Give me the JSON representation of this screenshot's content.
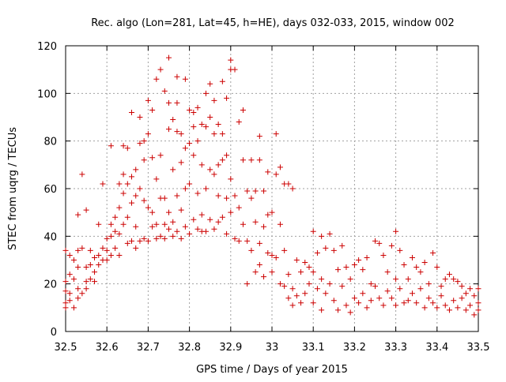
{
  "chart_data": {
    "type": "scatter",
    "title": "Rec. algo (Lon=281, Lat=45, h=HE), days 032-033, 2015, window 002",
    "xlabel": "GPS time / Days of year 2015",
    "ylabel": "STEC from uqrg / TECUs",
    "xlim": [
      32.5,
      33.5
    ],
    "ylim": [
      0,
      120
    ],
    "x_ticks": [
      "32.5",
      "32.6",
      "32.7",
      "32.8",
      "32.9",
      "33",
      "33.1",
      "33.2",
      "33.3",
      "33.4",
      "33.5"
    ],
    "y_ticks": [
      "0",
      "20",
      "40",
      "60",
      "80",
      "100",
      "120"
    ],
    "grid": true,
    "marker": "+",
    "color": "#cc0000",
    "series": [
      {
        "points": [
          [
            32.5,
            34
          ],
          [
            32.5,
            21
          ],
          [
            32.5,
            17
          ],
          [
            32.5,
            12
          ],
          [
            32.5,
            10
          ],
          [
            32.51,
            32
          ],
          [
            32.51,
            24
          ],
          [
            32.51,
            16
          ],
          [
            32.51,
            13
          ],
          [
            32.52,
            30
          ],
          [
            32.52,
            22
          ],
          [
            32.52,
            10
          ],
          [
            32.53,
            49
          ],
          [
            32.53,
            34
          ],
          [
            32.53,
            27
          ],
          [
            32.53,
            18
          ],
          [
            32.53,
            14
          ],
          [
            32.54,
            66
          ],
          [
            32.54,
            35
          ],
          [
            32.54,
            16
          ],
          [
            32.55,
            51
          ],
          [
            32.55,
            27
          ],
          [
            32.55,
            21
          ],
          [
            32.55,
            18
          ],
          [
            32.56,
            34
          ],
          [
            32.56,
            28
          ],
          [
            32.56,
            22
          ],
          [
            32.57,
            31
          ],
          [
            32.57,
            25
          ],
          [
            32.57,
            21
          ],
          [
            32.58,
            45
          ],
          [
            32.58,
            32
          ],
          [
            32.58,
            28
          ],
          [
            32.59,
            62
          ],
          [
            32.59,
            35
          ],
          [
            32.59,
            30
          ],
          [
            32.6,
            39
          ],
          [
            32.6,
            34
          ],
          [
            32.6,
            30
          ],
          [
            32.61,
            78
          ],
          [
            32.61,
            45
          ],
          [
            32.61,
            40
          ],
          [
            32.61,
            32
          ],
          [
            32.62,
            48
          ],
          [
            32.62,
            42
          ],
          [
            32.62,
            35
          ],
          [
            32.63,
            62
          ],
          [
            32.63,
            52
          ],
          [
            32.63,
            41
          ],
          [
            32.63,
            32
          ],
          [
            32.64,
            78
          ],
          [
            32.64,
            66
          ],
          [
            32.64,
            58
          ],
          [
            32.64,
            45
          ],
          [
            32.65,
            77
          ],
          [
            32.65,
            62
          ],
          [
            32.65,
            48
          ],
          [
            32.65,
            37
          ],
          [
            32.66,
            92
          ],
          [
            32.66,
            65
          ],
          [
            32.66,
            54
          ],
          [
            32.66,
            38
          ],
          [
            32.67,
            68
          ],
          [
            32.67,
            57
          ],
          [
            32.67,
            44
          ],
          [
            32.67,
            35
          ],
          [
            32.68,
            90
          ],
          [
            32.68,
            79
          ],
          [
            32.68,
            60
          ],
          [
            32.68,
            38
          ],
          [
            32.69,
            80
          ],
          [
            32.69,
            72
          ],
          [
            32.69,
            55
          ],
          [
            32.69,
            39
          ],
          [
            32.7,
            97
          ],
          [
            32.7,
            83
          ],
          [
            32.7,
            52
          ],
          [
            32.7,
            38
          ],
          [
            32.71,
            93
          ],
          [
            32.71,
            73
          ],
          [
            32.71,
            50
          ],
          [
            32.71,
            44
          ],
          [
            32.72,
            106
          ],
          [
            32.72,
            64
          ],
          [
            32.72,
            45
          ],
          [
            32.72,
            39
          ],
          [
            32.73,
            110
          ],
          [
            32.73,
            74
          ],
          [
            32.73,
            56
          ],
          [
            32.73,
            40
          ],
          [
            32.74,
            101
          ],
          [
            32.74,
            56
          ],
          [
            32.74,
            45
          ],
          [
            32.74,
            39
          ],
          [
            32.75,
            115
          ],
          [
            32.75,
            96
          ],
          [
            32.75,
            85
          ],
          [
            32.75,
            50
          ],
          [
            32.75,
            43
          ],
          [
            32.76,
            89
          ],
          [
            32.76,
            68
          ],
          [
            32.76,
            46
          ],
          [
            32.76,
            40
          ],
          [
            32.77,
            107
          ],
          [
            32.77,
            96
          ],
          [
            32.77,
            84
          ],
          [
            32.77,
            57
          ],
          [
            32.77,
            42
          ],
          [
            32.78,
            83
          ],
          [
            32.78,
            71
          ],
          [
            32.78,
            51
          ],
          [
            32.78,
            39
          ],
          [
            32.79,
            106
          ],
          [
            32.79,
            77
          ],
          [
            32.79,
            60
          ],
          [
            32.79,
            44
          ],
          [
            32.8,
            93
          ],
          [
            32.8,
            79
          ],
          [
            32.8,
            62
          ],
          [
            32.8,
            41
          ],
          [
            32.81,
            92
          ],
          [
            32.81,
            86
          ],
          [
            32.81,
            74
          ],
          [
            32.81,
            47
          ],
          [
            32.82,
            94
          ],
          [
            32.82,
            80
          ],
          [
            32.82,
            58
          ],
          [
            32.82,
            43
          ],
          [
            32.83,
            87
          ],
          [
            32.83,
            70
          ],
          [
            32.83,
            49
          ],
          [
            32.83,
            42
          ],
          [
            32.84,
            100
          ],
          [
            32.84,
            86
          ],
          [
            32.84,
            60
          ],
          [
            32.84,
            42
          ],
          [
            32.85,
            104
          ],
          [
            32.85,
            90
          ],
          [
            32.85,
            68
          ],
          [
            32.85,
            47
          ],
          [
            32.86,
            97
          ],
          [
            32.86,
            83
          ],
          [
            32.86,
            66
          ],
          [
            32.86,
            43
          ],
          [
            32.87,
            87
          ],
          [
            32.87,
            70
          ],
          [
            32.87,
            57
          ],
          [
            32.87,
            46
          ],
          [
            32.88,
            105
          ],
          [
            32.88,
            83
          ],
          [
            32.88,
            72
          ],
          [
            32.88,
            48
          ],
          [
            32.89,
            98
          ],
          [
            32.89,
            74
          ],
          [
            32.89,
            56
          ],
          [
            32.89,
            41
          ],
          [
            32.9,
            114
          ],
          [
            32.9,
            110
          ],
          [
            32.9,
            64
          ],
          [
            32.9,
            50
          ],
          [
            32.91,
            110
          ],
          [
            32.91,
            57
          ],
          [
            32.91,
            39
          ],
          [
            32.92,
            88
          ],
          [
            32.92,
            52
          ],
          [
            32.92,
            38
          ],
          [
            32.93,
            93
          ],
          [
            32.93,
            72
          ],
          [
            32.93,
            45
          ],
          [
            32.94,
            59
          ],
          [
            32.94,
            38
          ],
          [
            32.94,
            20
          ],
          [
            32.95,
            72
          ],
          [
            32.95,
            56
          ],
          [
            32.95,
            34
          ],
          [
            32.96,
            59
          ],
          [
            32.96,
            46
          ],
          [
            32.96,
            25
          ],
          [
            32.97,
            82
          ],
          [
            32.97,
            72
          ],
          [
            32.97,
            37
          ],
          [
            32.97,
            28
          ],
          [
            32.98,
            59
          ],
          [
            32.98,
            44
          ],
          [
            32.98,
            23
          ],
          [
            32.99,
            67
          ],
          [
            32.99,
            49
          ],
          [
            32.99,
            33
          ],
          [
            33.0,
            50
          ],
          [
            33.0,
            32
          ],
          [
            33.0,
            25
          ],
          [
            33.01,
            83
          ],
          [
            33.01,
            66
          ],
          [
            33.01,
            31
          ],
          [
            33.02,
            69
          ],
          [
            33.02,
            45
          ],
          [
            33.02,
            20
          ],
          [
            33.03,
            62
          ],
          [
            33.03,
            34
          ],
          [
            33.03,
            19
          ],
          [
            33.04,
            62
          ],
          [
            33.04,
            24
          ],
          [
            33.04,
            14
          ],
          [
            33.05,
            60
          ],
          [
            33.05,
            18
          ],
          [
            33.05,
            11
          ],
          [
            33.06,
            30
          ],
          [
            33.06,
            15
          ],
          [
            33.07,
            25
          ],
          [
            33.07,
            12
          ],
          [
            33.08,
            29
          ],
          [
            33.08,
            16
          ],
          [
            33.09,
            27
          ],
          [
            33.09,
            20
          ],
          [
            33.1,
            42
          ],
          [
            33.1,
            25
          ],
          [
            33.1,
            12
          ],
          [
            33.11,
            33
          ],
          [
            33.11,
            18
          ],
          [
            33.12,
            40
          ],
          [
            33.12,
            22
          ],
          [
            33.12,
            9
          ],
          [
            33.13,
            35
          ],
          [
            33.13,
            16
          ],
          [
            33.14,
            41
          ],
          [
            33.14,
            20
          ],
          [
            33.15,
            34
          ],
          [
            33.15,
            13
          ],
          [
            33.16,
            26
          ],
          [
            33.16,
            9
          ],
          [
            33.17,
            36
          ],
          [
            33.17,
            19
          ],
          [
            33.18,
            27
          ],
          [
            33.18,
            11
          ],
          [
            33.19,
            22
          ],
          [
            33.19,
            8
          ],
          [
            33.2,
            28
          ],
          [
            33.2,
            14
          ],
          [
            33.21,
            30
          ],
          [
            33.21,
            12
          ],
          [
            33.22,
            26
          ],
          [
            33.22,
            16
          ],
          [
            33.23,
            31
          ],
          [
            33.23,
            10
          ],
          [
            33.24,
            20
          ],
          [
            33.24,
            13
          ],
          [
            33.25,
            38
          ],
          [
            33.25,
            19
          ],
          [
            33.26,
            37
          ],
          [
            33.26,
            14
          ],
          [
            33.27,
            32
          ],
          [
            33.27,
            11
          ],
          [
            33.28,
            25
          ],
          [
            33.28,
            17
          ],
          [
            33.29,
            36
          ],
          [
            33.29,
            14
          ],
          [
            33.3,
            42
          ],
          [
            33.3,
            22
          ],
          [
            33.3,
            11
          ],
          [
            33.31,
            34
          ],
          [
            33.31,
            18
          ],
          [
            33.32,
            28
          ],
          [
            33.32,
            12
          ],
          [
            33.33,
            22
          ],
          [
            33.33,
            13
          ],
          [
            33.34,
            31
          ],
          [
            33.34,
            16
          ],
          [
            33.35,
            27
          ],
          [
            33.35,
            12
          ],
          [
            33.36,
            25
          ],
          [
            33.36,
            18
          ],
          [
            33.37,
            29
          ],
          [
            33.37,
            10
          ],
          [
            33.38,
            20
          ],
          [
            33.38,
            14
          ],
          [
            33.39,
            33
          ],
          [
            33.39,
            12
          ],
          [
            33.4,
            27
          ],
          [
            33.4,
            10
          ],
          [
            33.41,
            19
          ],
          [
            33.41,
            15
          ],
          [
            33.42,
            22
          ],
          [
            33.42,
            11
          ],
          [
            33.43,
            24
          ],
          [
            33.43,
            9
          ],
          [
            33.44,
            22
          ],
          [
            33.44,
            13
          ],
          [
            33.45,
            21
          ],
          [
            33.45,
            10
          ],
          [
            33.46,
            19
          ],
          [
            33.46,
            14
          ],
          [
            33.47,
            16
          ],
          [
            33.47,
            9
          ],
          [
            33.48,
            18
          ],
          [
            33.48,
            11
          ],
          [
            33.49,
            15
          ],
          [
            33.49,
            7
          ],
          [
            33.5,
            18
          ],
          [
            33.5,
            12
          ],
          [
            33.5,
            9
          ]
        ]
      }
    ]
  }
}
